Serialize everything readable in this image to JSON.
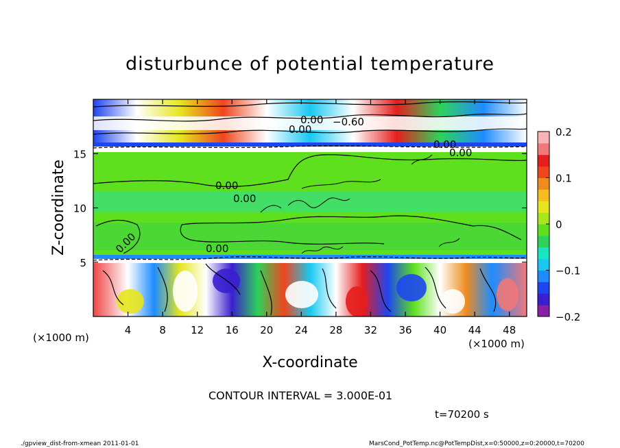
{
  "chart_data": {
    "type": "heatmap",
    "title": "disturbunce of potential temperature",
    "xlabel": "X-coordinate",
    "ylabel": "Z-coordinate",
    "x_unit": "(×1000 m)",
    "y_unit": "(×1000 m)",
    "xlim": [
      0,
      50
    ],
    "ylim": [
      0,
      20
    ],
    "x_ticks": [
      4,
      8,
      12,
      16,
      20,
      24,
      28,
      32,
      36,
      40,
      44,
      48
    ],
    "y_ticks": [
      5,
      10,
      15
    ],
    "colorbar": {
      "min": -0.2,
      "max": 0.2,
      "ticks": [
        0.2,
        0.1,
        0,
        -0.1,
        -0.2
      ],
      "tick_labels": [
        "0.2",
        "0.1",
        "0",
        "−0.1",
        "−0.2"
      ],
      "colors": [
        "#8a1fa6",
        "#3a1fd0",
        "#1e46f0",
        "#1e8cff",
        "#18c8f0",
        "#18e6c0",
        "#2ed25a",
        "#5ee01e",
        "#a8e61e",
        "#e6e61e",
        "#f5be1e",
        "#f08c1e",
        "#f0461e",
        "#e61e1e",
        "#f07878",
        "#f8b4b4"
      ]
    },
    "contour_labels": [
      "0.00",
      "0.00",
      "−0.60",
      "0.00",
      "0.00",
      "0.00",
      "0.00",
      "0.00",
      "0.00"
    ],
    "contour_interval": "CONTOUR INTERVAL = 3.000E-01",
    "time_label": "t=70200 s"
  },
  "footer": {
    "left": "./gpview_dist-from-xmean  2011-01-01",
    "right": "MarsCond_PotTemp.nc@PotTempDist,x=0:50000,z=0:20000,t=70200"
  }
}
